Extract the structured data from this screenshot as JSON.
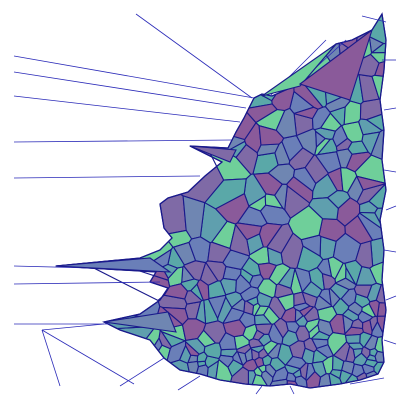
{
  "diagram": {
    "kind": "voronoi-tessellation",
    "colors": {
      "background": "#ffffff",
      "edge": "#1a1a8c",
      "ray": "#2a2ab8",
      "cell_fills": [
        "#7f6aa6",
        "#6f86b2",
        "#5aa8a8",
        "#6fcf9a",
        "#8a5a9a",
        "#6a7fb8",
        "#5f9fae"
      ]
    }
  }
}
